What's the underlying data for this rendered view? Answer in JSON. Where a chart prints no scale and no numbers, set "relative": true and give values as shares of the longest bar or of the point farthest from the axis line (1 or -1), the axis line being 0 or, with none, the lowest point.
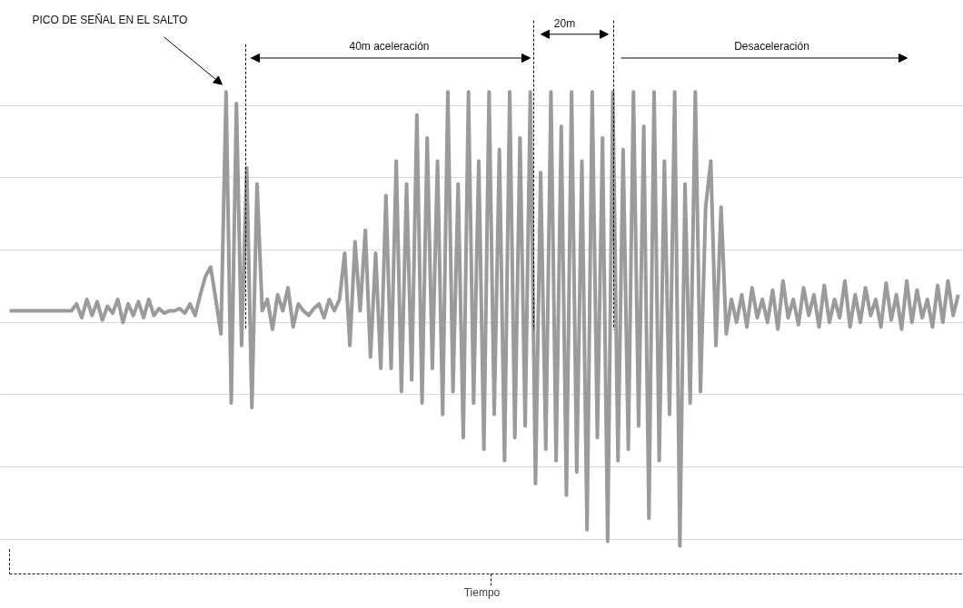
{
  "chart_data": {
    "type": "line",
    "relative": true,
    "grid": "y",
    "color": "#9b9b9b",
    "xlabel": "Tiempo",
    "annotations": [
      "PICO DE SEÑAL EN EL SALTO",
      "40m aceleración",
      "20m",
      "Desaceleración"
    ],
    "categories": [
      null,
      null,
      null,
      null,
      null,
      null,
      null,
      null,
      null,
      null,
      null,
      null,
      null,
      null,
      null,
      null,
      null,
      null,
      null,
      null,
      null,
      null,
      null,
      null,
      null,
      null,
      null,
      null,
      null,
      null,
      null,
      null,
      null,
      null,
      null,
      null,
      null,
      null,
      null,
      null,
      null,
      null,
      null,
      null,
      null,
      null,
      null,
      null,
      null,
      null,
      null,
      null,
      null,
      null,
      null,
      null,
      null,
      null,
      null,
      null,
      null,
      null,
      null,
      null,
      null,
      null,
      null,
      null,
      null,
      null,
      null,
      null,
      null,
      null,
      null,
      null,
      null,
      null,
      null,
      null,
      null,
      null,
      null,
      null,
      null,
      null,
      null,
      null,
      null,
      null,
      null,
      null,
      null,
      null,
      null,
      null,
      null,
      null,
      null,
      null,
      null,
      null,
      null,
      null,
      null,
      null,
      null,
      null,
      null,
      null,
      null,
      null,
      null,
      null,
      null,
      null,
      null,
      null,
      null,
      null,
      null,
      null,
      null,
      null,
      null,
      null,
      null,
      null,
      null,
      null,
      null,
      null,
      null,
      null,
      null,
      null,
      null,
      null,
      null,
      null,
      null,
      null,
      null,
      null,
      null,
      null,
      null,
      null,
      null,
      null,
      null,
      null,
      null,
      null,
      null,
      null,
      null,
      null,
      null,
      null,
      null,
      null,
      null,
      null,
      null,
      null,
      null,
      null,
      null,
      null,
      null,
      null,
      null,
      null,
      null,
      null,
      null,
      null,
      null,
      null,
      null,
      null,
      null,
      null,
      null
    ],
    "values": [
      0.05,
      0.05,
      0.05,
      0.05,
      0.05,
      0.05,
      0.05,
      0.05,
      0.05,
      0.05,
      0.05,
      0.05,
      0.05,
      0.08,
      0.02,
      0.1,
      0.03,
      0.09,
      0.01,
      0.07,
      0.04,
      0.1,
      0.0,
      0.08,
      0.03,
      0.09,
      0.02,
      0.1,
      0.03,
      0.06,
      0.04,
      0.05,
      0.05,
      0.06,
      0.04,
      0.08,
      0.03,
      0.12,
      0.2,
      0.24,
      0.1,
      -0.05,
      1.0,
      -0.35,
      0.95,
      -0.1,
      0.67,
      -0.37,
      0.6,
      0.05,
      0.1,
      -0.03,
      0.12,
      0.05,
      0.15,
      -0.02,
      0.08,
      0.05,
      0.03,
      0.06,
      0.08,
      0.02,
      0.1,
      0.05,
      0.1,
      0.3,
      -0.1,
      0.35,
      0.05,
      0.4,
      -0.15,
      0.3,
      -0.2,
      0.55,
      -0.2,
      0.7,
      -0.3,
      0.6,
      -0.25,
      0.9,
      -0.35,
      0.8,
      -0.2,
      0.7,
      -0.4,
      1.0,
      -0.3,
      0.6,
      -0.5,
      1.0,
      -0.35,
      0.7,
      -0.55,
      1.0,
      -0.4,
      0.75,
      -0.6,
      1.0,
      -0.5,
      0.8,
      -0.45,
      1.0,
      -0.7,
      0.65,
      -0.55,
      1.0,
      -0.6,
      0.85,
      -0.75,
      1.0,
      -0.65,
      0.7,
      -0.9,
      1.0,
      -0.5,
      0.8,
      -0.95,
      1.0,
      -0.6,
      0.75,
      -0.55,
      1.0,
      -0.45,
      0.85,
      -0.85,
      1.0,
      -0.6,
      0.7,
      -0.4,
      1.0,
      -0.97,
      0.6,
      -0.35,
      1.0,
      -0.3,
      0.5,
      0.7,
      -0.1,
      0.5,
      -0.05,
      0.1,
      0.0,
      0.12,
      -0.02,
      0.15,
      0.02,
      0.1,
      0.0,
      0.14,
      -0.03,
      0.18,
      0.02,
      0.1,
      -0.01,
      0.15,
      0.03,
      0.12,
      -0.02,
      0.16,
      0.0,
      0.1,
      0.02,
      0.18,
      -0.02,
      0.12,
      0.0,
      0.15,
      0.03,
      0.1,
      -0.02,
      0.17,
      0.01,
      0.12,
      -0.03,
      0.18,
      0.0,
      0.14,
      0.02,
      0.1,
      -0.02,
      0.16,
      0.0,
      0.18,
      0.03,
      0.12
    ]
  }
}
